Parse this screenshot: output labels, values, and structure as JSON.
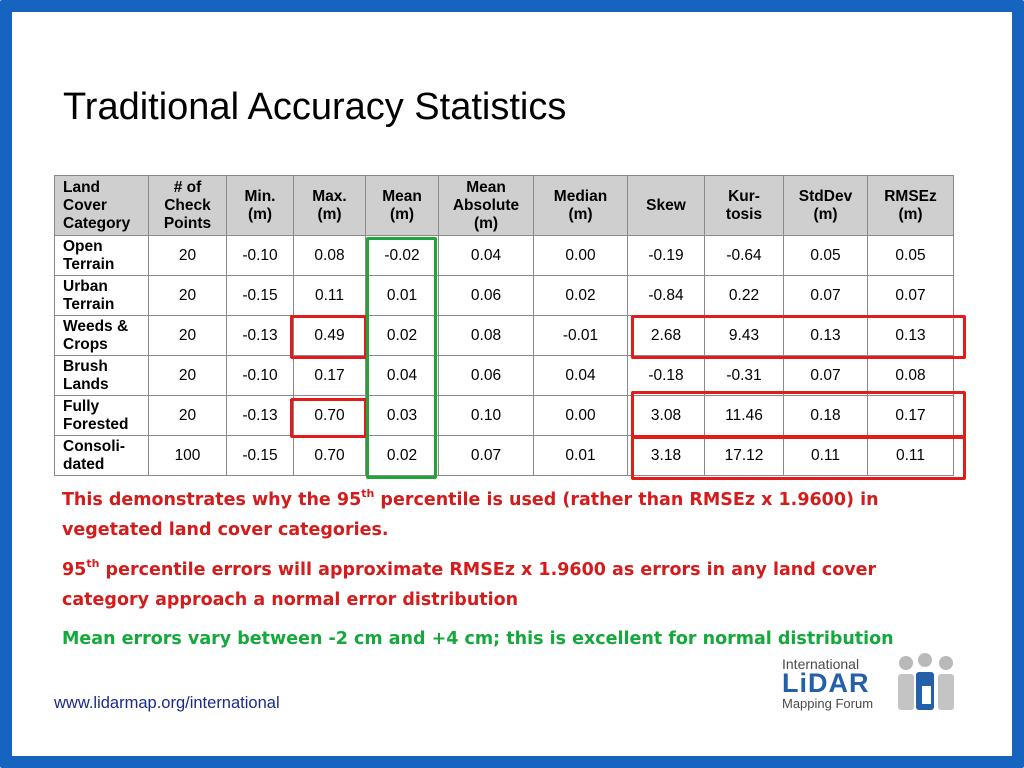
{
  "slide": {
    "title": "Traditional Accuracy Statistics",
    "footer_url": "www.lidarmap.org/international"
  },
  "table": {
    "headers": [
      [
        "Land",
        "Cover",
        "Category"
      ],
      [
        "# of",
        "Check",
        "Points"
      ],
      [
        "Min.",
        "(m)"
      ],
      [
        "Max.",
        "(m)"
      ],
      [
        "Mean",
        "(m)"
      ],
      [
        "Mean",
        "Absolute",
        "(m)"
      ],
      [
        "Median",
        "(m)"
      ],
      [
        "Skew"
      ],
      [
        "Kur-",
        "tosis"
      ],
      [
        "StdDev",
        "(m)"
      ],
      [
        "RMSEz",
        "(m)"
      ]
    ],
    "rows": [
      {
        "category": [
          "Open",
          "Terrain"
        ],
        "values": [
          "20",
          "-0.10",
          "0.08",
          "-0.02",
          "0.04",
          "0.00",
          "-0.19",
          "-0.64",
          "0.05",
          "0.05"
        ]
      },
      {
        "category": [
          "Urban",
          "Terrain"
        ],
        "values": [
          "20",
          "-0.15",
          "0.11",
          "0.01",
          "0.06",
          "0.02",
          "-0.84",
          "0.22",
          "0.07",
          "0.07"
        ]
      },
      {
        "category": [
          "Weeds &",
          "Crops"
        ],
        "values": [
          "20",
          "-0.13",
          "0.49",
          "0.02",
          "0.08",
          "-0.01",
          "2.68",
          "9.43",
          "0.13",
          "0.13"
        ]
      },
      {
        "category": [
          "Brush",
          "Lands"
        ],
        "values": [
          "20",
          "-0.10",
          "0.17",
          "0.04",
          "0.06",
          "0.04",
          "-0.18",
          "-0.31",
          "0.07",
          "0.08"
        ]
      },
      {
        "category": [
          "Fully",
          "Forested"
        ],
        "values": [
          "20",
          "-0.13",
          "0.70",
          "0.03",
          "0.10",
          "0.00",
          "3.08",
          "11.46",
          "0.18",
          "0.17"
        ]
      },
      {
        "category": [
          "Consoli-",
          "dated"
        ],
        "values": [
          "100",
          "-0.15",
          "0.70",
          "0.02",
          "0.07",
          "0.01",
          "3.18",
          "17.12",
          "0.11",
          "0.11"
        ]
      }
    ]
  },
  "notes": {
    "note1_part1": "This demonstrates why the 95",
    "note1_sup": "th",
    "note1_part2": " percentile is used (rather than RMSEz x 1.9600) in vegetated land cover categories.",
    "note2_part1": "95",
    "note2_sup": "th",
    "note2_part2": " percentile errors will approximate RMSEz x 1.9600 as errors in any land cover category approach a normal error distribution",
    "note3": "Mean errors vary between -2 cm and +4 cm; this is excellent for normal distribution"
  },
  "logo": {
    "line1": "International",
    "line2": "LiDAR",
    "line3": "Mapping Forum"
  },
  "colors": {
    "frame": "#1565c0",
    "highlight_red": "#e31b1b",
    "highlight_green": "#1fa637",
    "note_red": "#d41c1c",
    "note_green": "#15a83c",
    "header_bg": "#cfcfcf"
  }
}
